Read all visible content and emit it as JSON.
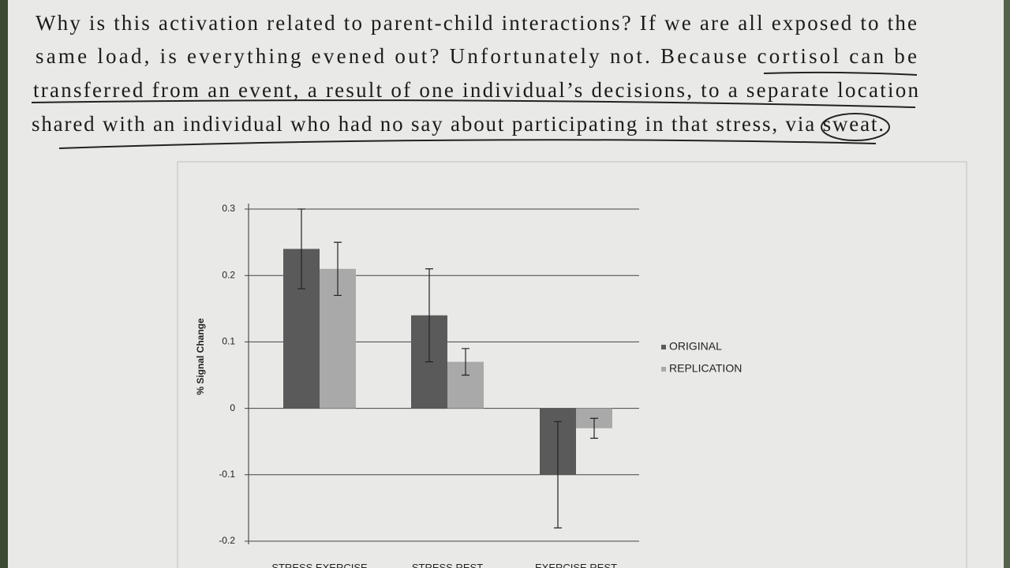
{
  "paragraph": [
    "Why is this activation related to parent-child interactions? If we are all exposed to the",
    "same load, is everything evened out? Unfortunately not. Because cortisol can be",
    "transferred from an event, a result of one individual’s decisions, to a separate location",
    "shared with an individual who had no say about participating in that stress, via sweat."
  ],
  "chart_data": {
    "type": "bar",
    "ylabel": "% Signal Change",
    "categories": [
      "STRESS EXERCISE",
      "STRESS REST",
      "EXERCISE REST"
    ],
    "series": [
      {
        "name": "ORIGINAL",
        "color": "#5a5a5a",
        "values": [
          0.24,
          0.14,
          -0.1
        ],
        "errors": [
          0.06,
          0.07,
          0.08
        ]
      },
      {
        "name": "REPLICATION",
        "color": "#a9a9a9",
        "values": [
          0.21,
          0.07,
          -0.03
        ],
        "errors": [
          0.04,
          0.02,
          0.015
        ]
      }
    ],
    "ylim": [
      -0.2,
      0.3
    ],
    "yticks": [
      0.3,
      0.2,
      0.1,
      0,
      -0.1,
      -0.2
    ],
    "grid": true
  }
}
